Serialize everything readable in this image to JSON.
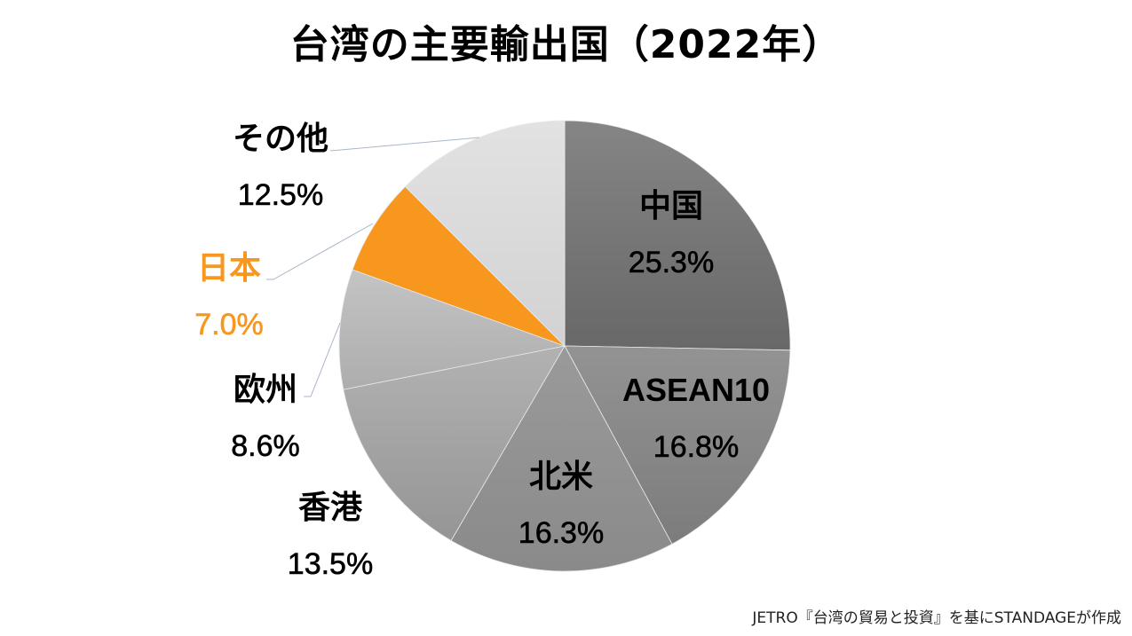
{
  "title": "台湾の主要輸出国（2022年）",
  "source": "JETRO『台湾の貿易と投資』を基にSTANDAGEが作成",
  "chart_data": {
    "type": "pie",
    "title": "台湾の主要輸出国（2022年）",
    "start_angle_deg": 0,
    "direction": "clockwise",
    "categories": [
      "中国",
      "ASEAN10",
      "北米",
      "香港",
      "欧州",
      "日本",
      "その他"
    ],
    "values": [
      25.3,
      16.8,
      16.3,
      13.5,
      8.6,
      7.0,
      12.5
    ],
    "labels": [
      "25.3%",
      "16.8%",
      "16.3%",
      "13.5%",
      "8.6%",
      "7.0%",
      "12.5%"
    ],
    "colors": [
      "#777777",
      "#898989",
      "#939393",
      "#a6a6a6",
      "#bdbdbd",
      "#f7971e",
      "#dedede"
    ],
    "highlight": "日本",
    "highlight_color": "#f7971e",
    "legend": "none",
    "source_note": "JETRO『台湾の貿易と投資』を基にSTANDAGEが作成"
  },
  "slices": [
    {
      "name": "中国",
      "value": "25.3%"
    },
    {
      "name": "ASEAN10",
      "value": "16.8%"
    },
    {
      "name": "北米",
      "value": "16.3%"
    },
    {
      "name": "香港",
      "value": "13.5%"
    },
    {
      "name": "欧州",
      "value": "8.6%"
    },
    {
      "name": "日本",
      "value": "7.0%"
    },
    {
      "name": "その他",
      "value": "12.5%"
    }
  ]
}
